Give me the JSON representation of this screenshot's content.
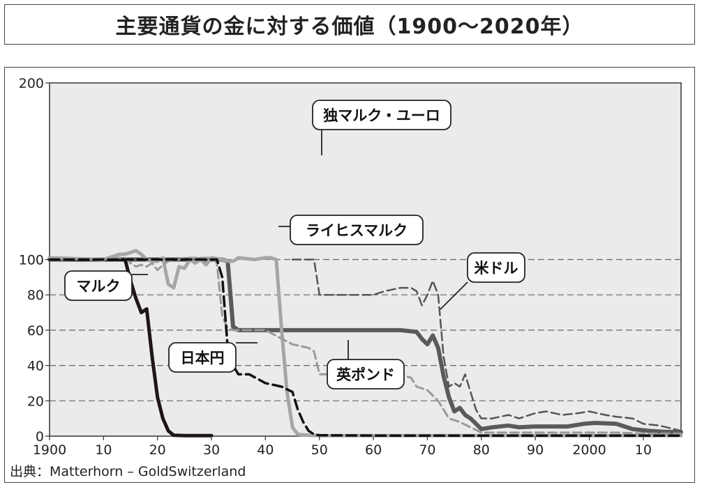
{
  "header": {
    "title": "主要通貨の金に対する価値（1900〜2020年）"
  },
  "source": "出典：Matterhorn – GoldSwitzerland",
  "colors": {
    "plot_bg": "#ebebeb",
    "us_dollar": "#5a5a5a",
    "mark": "#1e1616",
    "reichsmark": "#a6a6a6",
    "pound": "#9a9a9a",
    "yen": "#111111",
    "dm_euro": "#555555"
  },
  "chart_data": {
    "type": "line",
    "title": "主要通貨の金に対する価値（1900〜2020年）",
    "xlabel": "",
    "ylabel": "",
    "xlim": [
      1900,
      2017
    ],
    "ylim": [
      0,
      200
    ],
    "x_ticks": [
      {
        "value": 1900,
        "label": "1900"
      },
      {
        "value": 1910,
        "label": "10"
      },
      {
        "value": 1920,
        "label": "20"
      },
      {
        "value": 1930,
        "label": "30"
      },
      {
        "value": 1940,
        "label": "40"
      },
      {
        "value": 1950,
        "label": "50"
      },
      {
        "value": 1960,
        "label": "60"
      },
      {
        "value": 1970,
        "label": "70"
      },
      {
        "value": 1980,
        "label": "80"
      },
      {
        "value": 1990,
        "label": "90"
      },
      {
        "value": 2000,
        "label": "2000"
      },
      {
        "value": 2010,
        "label": "10"
      }
    ],
    "y_ticks": [
      {
        "value": 0,
        "label": "0"
      },
      {
        "value": 20,
        "label": "20"
      },
      {
        "value": 40,
        "label": "40"
      },
      {
        "value": 60,
        "label": "60"
      },
      {
        "value": 80,
        "label": "80"
      },
      {
        "value": 100,
        "label": "100"
      },
      {
        "value": 200,
        "label": "200"
      }
    ],
    "grid": {
      "dashed_y": [
        20,
        40,
        60,
        80,
        100
      ]
    },
    "series": [
      {
        "key": "us_dollar",
        "name": "米ドル",
        "style": "solid",
        "width": 6,
        "x": [
          1900,
          1905,
          1910,
          1915,
          1920,
          1925,
          1930,
          1932,
          1933,
          1934,
          1935,
          1940,
          1950,
          1960,
          1965,
          1968,
          1969,
          1970,
          1971,
          1972,
          1973,
          1974,
          1975,
          1976,
          1977,
          1978,
          1979,
          1980,
          1982,
          1985,
          1987,
          1990,
          1993,
          1996,
          1999,
          2001,
          2005,
          2008,
          2011,
          2014,
          2017
        ],
        "y": [
          100,
          100,
          100,
          100,
          100,
          100,
          100,
          100,
          99,
          62,
          60,
          60,
          60,
          60,
          60,
          59,
          55,
          52,
          57,
          50,
          34,
          22,
          14,
          16,
          12,
          10,
          7,
          4,
          5,
          6,
          5,
          5.5,
          5.5,
          5.5,
          7,
          7.5,
          7,
          4,
          3,
          2.5,
          2.3
        ]
      },
      {
        "key": "mark",
        "name": "マルク",
        "style": "solid",
        "width": 5,
        "x": [
          1900,
          1905,
          1910,
          1913,
          1914,
          1915,
          1916,
          1917,
          1918,
          1919,
          1920,
          1921,
          1922,
          1923,
          1925,
          1930
        ],
        "y": [
          101,
          100,
          100,
          100,
          100,
          88,
          78,
          70,
          72,
          45,
          22,
          10,
          3,
          0.5,
          0.3,
          0.3
        ]
      },
      {
        "key": "reichsmark",
        "name": "ライヒスマルク",
        "style": "solid",
        "width": 5,
        "x": [
          1900,
          1910,
          1913,
          1914,
          1915,
          1916,
          1917,
          1918,
          1919,
          1920,
          1921,
          1922,
          1923,
          1924,
          1925,
          1926,
          1927,
          1928,
          1929,
          1930,
          1932,
          1933,
          1934,
          1935,
          1938,
          1940,
          1941,
          1942,
          1943,
          1944,
          1945,
          1946,
          1948,
          1950,
          1955,
          1960,
          1980,
          2017
        ],
        "y": [
          101,
          100,
          103,
          103,
          104,
          105,
          103,
          100,
          99,
          99,
          101,
          86,
          84,
          96,
          95,
          100,
          98,
          100,
          97,
          101,
          100,
          99,
          99,
          101,
          100,
          101,
          101,
          100,
          60,
          25,
          5,
          1,
          0.5,
          0.3,
          0.3,
          0.3,
          0.3,
          0.3
        ]
      },
      {
        "key": "pound",
        "name": "英ポンド",
        "style": "dashed",
        "width": 3,
        "x": [
          1900,
          1905,
          1910,
          1913,
          1914,
          1915,
          1916,
          1917,
          1918,
          1919,
          1920,
          1921,
          1922,
          1924,
          1925,
          1928,
          1930,
          1931,
          1932,
          1933,
          1934,
          1935,
          1940,
          1945,
          1948,
          1949,
          1950,
          1955,
          1960,
          1965,
          1967,
          1968,
          1970,
          1972,
          1974,
          1976,
          1978,
          1980,
          1985,
          1990,
          1995,
          2000,
          2005,
          2010,
          2017
        ],
        "y": [
          100,
          100,
          100,
          101,
          101,
          98,
          96,
          97,
          96,
          98,
          94,
          97,
          99,
          100,
          101,
          101,
          101,
          98,
          68,
          61,
          60,
          60,
          60,
          52,
          50,
          48,
          35,
          35,
          35,
          35,
          33,
          28,
          26,
          20,
          10,
          8,
          5,
          2,
          2,
          2,
          2,
          2,
          2,
          1.5,
          1.5
        ]
      },
      {
        "key": "yen",
        "name": "日本円",
        "style": "dashed",
        "width": 3.5,
        "x": [
          1900,
          1905,
          1910,
          1915,
          1920,
          1925,
          1930,
          1931,
          1932,
          1933,
          1934,
          1935,
          1937,
          1940,
          1943,
          1945,
          1946,
          1947,
          1948,
          1949,
          1950,
          1960,
          1980,
          2017
        ],
        "y": [
          100,
          100,
          100,
          100,
          100,
          100,
          100,
          100,
          90,
          50,
          40,
          35,
          35,
          30,
          28,
          25,
          15,
          8,
          3,
          1,
          0.5,
          0.3,
          0.3,
          0.3
        ]
      },
      {
        "key": "dm_euro",
        "name": "独マルク・ユーロ",
        "style": "dashed",
        "width": 2.5,
        "x": [
          1945,
          1948,
          1949,
          1950,
          1955,
          1960,
          1962,
          1965,
          1967,
          1968,
          1969,
          1970,
          1971,
          1972,
          1973,
          1974,
          1975,
          1976,
          1977,
          1978,
          1979,
          1980,
          1982,
          1985,
          1987,
          1990,
          1992,
          1995,
          1998,
          2000,
          2003,
          2005,
          2008,
          2010,
          2013,
          2017
        ],
        "y": [
          100,
          100,
          100,
          80,
          80,
          80,
          82,
          84,
          84,
          82,
          74,
          80,
          88,
          80,
          45,
          28,
          30,
          28,
          35,
          25,
          15,
          10,
          10,
          12,
          10,
          13,
          14,
          12,
          13,
          14,
          12,
          11,
          10,
          7,
          6,
          3
        ]
      }
    ],
    "callouts": [
      {
        "series": "dm_euro",
        "label": "独マルク・ユーロ"
      },
      {
        "series": "reichsmark",
        "label": "ライヒスマルク"
      },
      {
        "series": "us_dollar",
        "label": "米ドル"
      },
      {
        "series": "mark",
        "label": "マルク"
      },
      {
        "series": "yen",
        "label": "日本円"
      },
      {
        "series": "pound",
        "label": "英ポンド"
      }
    ]
  }
}
